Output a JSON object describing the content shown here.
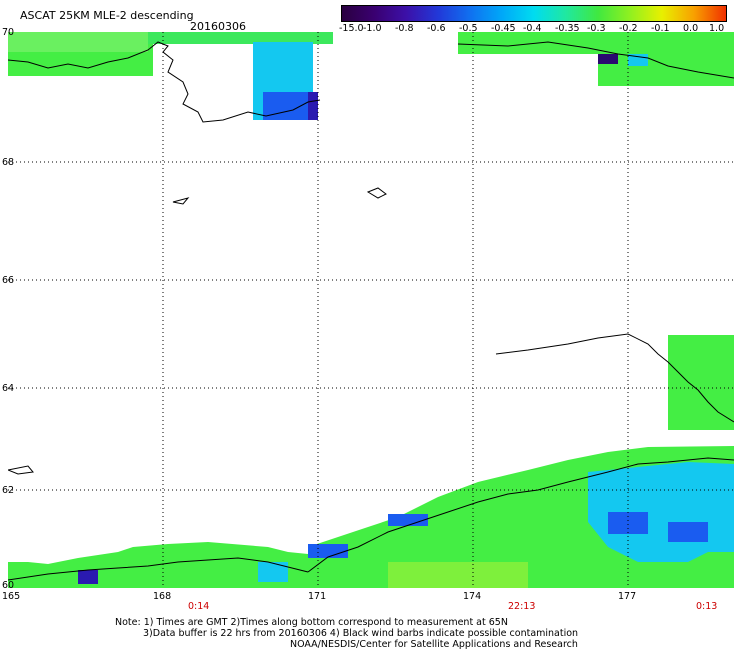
{
  "header": {
    "title": "ASCAT 25KM MLE-2 descending",
    "date": "20160306"
  },
  "colorbar": {
    "labels": [
      "-15.0",
      "-1.0",
      "-0.8",
      "-0.6",
      "-0.5",
      "-0.45",
      "-0.4",
      "-0.35",
      "-0.3",
      "-0.2",
      "-0.1",
      "0.0",
      "1.0"
    ],
    "colors": [
      "#2a0040",
      "#3a0070",
      "#3c10a8",
      "#2238d8",
      "#1070f0",
      "#00a8f8",
      "#00dcf0",
      "#20e8a0",
      "#40e840",
      "#90f020",
      "#e8f000",
      "#f8a000",
      "#f03000"
    ]
  },
  "map": {
    "lat_labels": [
      "70",
      "68",
      "66",
      "64",
      "62",
      "60"
    ],
    "lon_labels": [
      "165",
      "168",
      "171",
      "174",
      "177"
    ],
    "time_labels": [
      "0:14",
      "22:13",
      "0:13"
    ],
    "colors": {
      "green": "#44ee44",
      "cyan": "#00ddee",
      "blue": "#1a5cf0",
      "purple": "#3a0a80",
      "yellowgreen": "#9cf020"
    }
  },
  "notes": {
    "line1": "Note: 1) Times are GMT 2)Times along bottom correspond to measurement at 65N",
    "line2": "3)Data buffer is 22 hrs from 20160306 4) Black wind barbs indicate possible contamination",
    "line3": "NOAA/NESDIS/Center for Satellite Applications and Research"
  }
}
